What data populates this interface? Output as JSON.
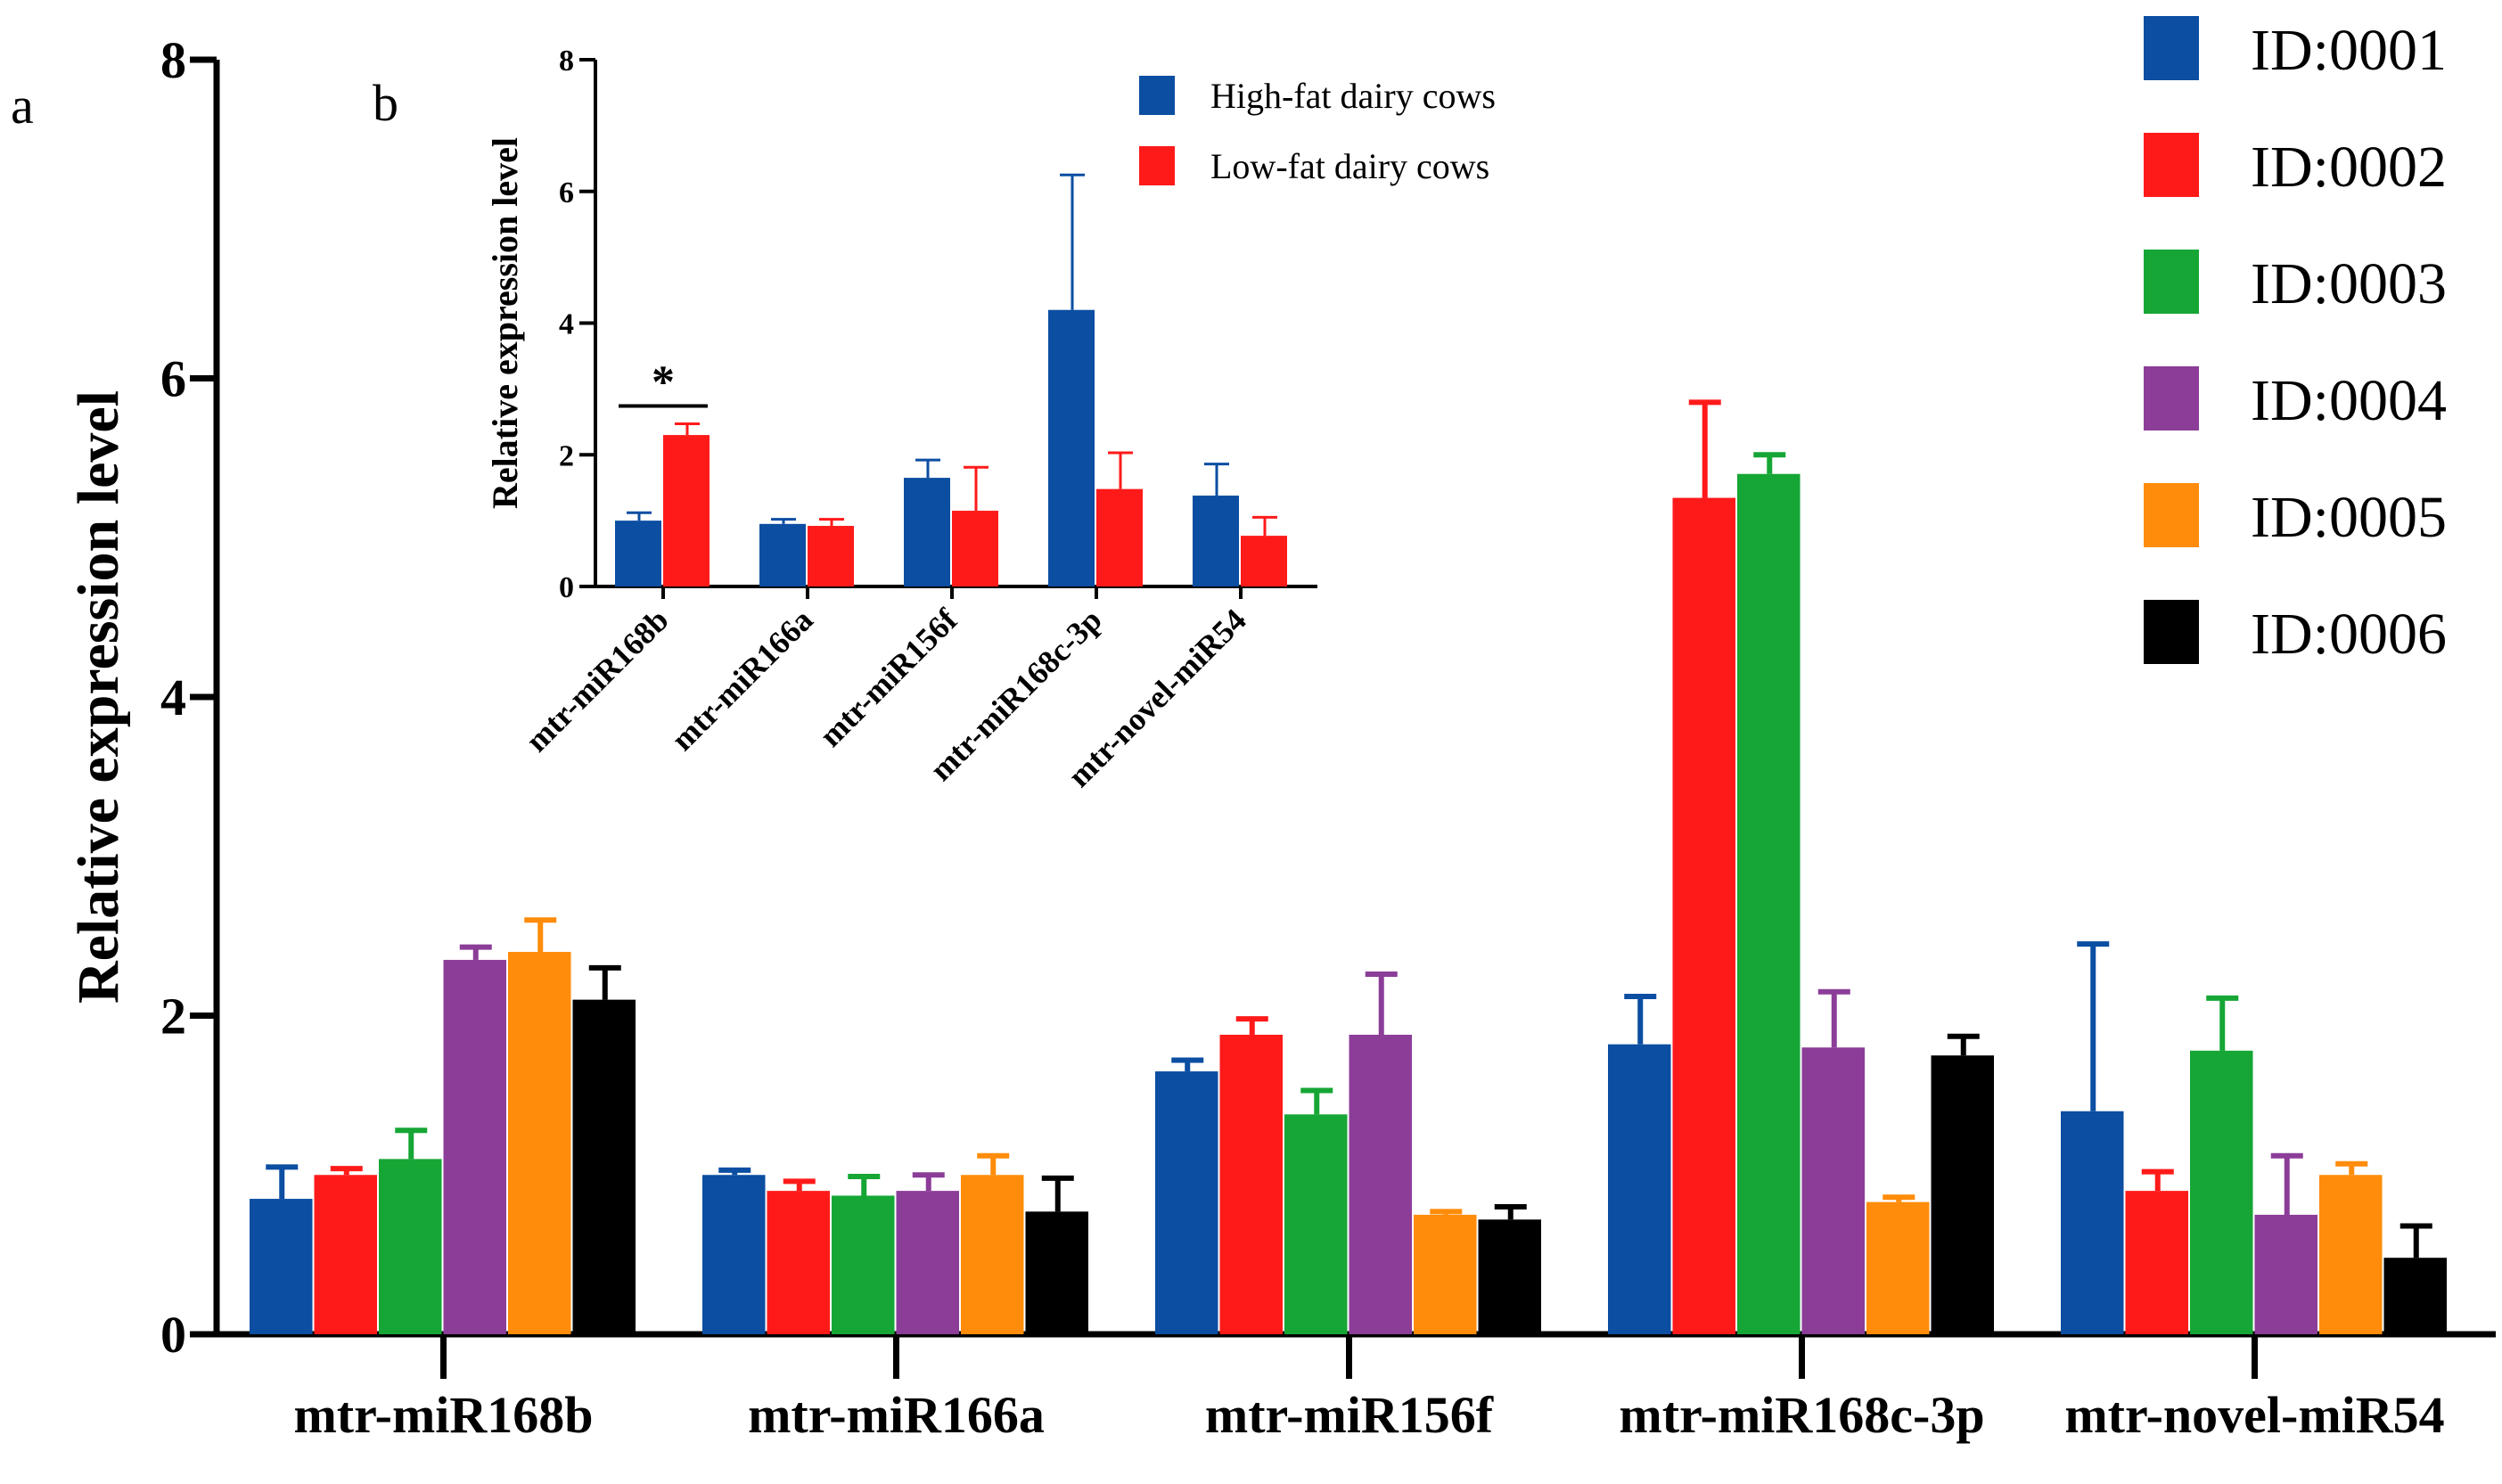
{
  "panels": {
    "a": "a",
    "b": "b"
  },
  "chart_data": [
    {
      "panel": "a",
      "type": "bar",
      "title": "",
      "xlabel": "",
      "ylabel": "Relative expression level",
      "ylim": [
        0,
        8
      ],
      "yticks": [
        0,
        2,
        4,
        6,
        8
      ],
      "categories": [
        "mtr-miR168b",
        "mtr-miR166a",
        "mtr-miR156f",
        "mtr-miR168c-3p",
        "mtr-novel-miR54"
      ],
      "legend_position": "top-right",
      "series": [
        {
          "name": "ID:0001",
          "color": "#0b4ea2",
          "values": [
            0.85,
            1.0,
            1.65,
            1.82,
            1.4
          ],
          "errors": [
            0.2,
            0.03,
            0.07,
            0.3,
            1.05
          ]
        },
        {
          "name": "ID:0002",
          "color": "#ff1a1a",
          "values": [
            1.0,
            0.9,
            1.88,
            5.25,
            0.9
          ],
          "errors": [
            0.04,
            0.06,
            0.1,
            0.6,
            0.12
          ]
        },
        {
          "name": "ID:0003",
          "color": "#16a635",
          "values": [
            1.1,
            0.87,
            1.38,
            5.4,
            1.78
          ],
          "errors": [
            0.18,
            0.12,
            0.15,
            0.12,
            0.33
          ]
        },
        {
          "name": "ID:0004",
          "color": "#8b3d98",
          "values": [
            2.35,
            0.9,
            1.88,
            1.8,
            0.75
          ],
          "errors": [
            0.08,
            0.1,
            0.38,
            0.35,
            0.37
          ]
        },
        {
          "name": "ID:0005",
          "color": "#ff8c0a",
          "values": [
            2.4,
            1.0,
            0.75,
            0.83,
            1.0
          ],
          "errors": [
            0.2,
            0.12,
            0.02,
            0.03,
            0.07
          ]
        },
        {
          "name": "ID:0006",
          "color": "#000000",
          "values": [
            2.1,
            0.77,
            0.72,
            1.75,
            0.48
          ],
          "errors": [
            0.2,
            0.21,
            0.08,
            0.12,
            0.2
          ]
        }
      ]
    },
    {
      "panel": "b",
      "type": "bar",
      "title": "",
      "xlabel": "",
      "ylabel": "Relative expression level",
      "ylim": [
        0,
        8
      ],
      "yticks": [
        0,
        2,
        4,
        6,
        8
      ],
      "categories": [
        "mtr-miR168b",
        "mtr-miR166a",
        "mtr-miR156f",
        "mtr-miR168c-3p",
        "mtr-novel-miR54"
      ],
      "legend_position": "top-center",
      "significance": [
        {
          "category_index": 0,
          "label": "*"
        }
      ],
      "series": [
        {
          "name": "High-fat dairy cows",
          "color": "#0b4ea2",
          "values": [
            1.0,
            0.95,
            1.65,
            4.2,
            1.38
          ],
          "errors": [
            0.12,
            0.07,
            0.27,
            2.05,
            0.48
          ]
        },
        {
          "name": "Low-fat dairy cows",
          "color": "#ff1a1a",
          "values": [
            2.3,
            0.92,
            1.15,
            1.48,
            0.77
          ],
          "errors": [
            0.17,
            0.1,
            0.66,
            0.55,
            0.28
          ]
        }
      ]
    }
  ]
}
